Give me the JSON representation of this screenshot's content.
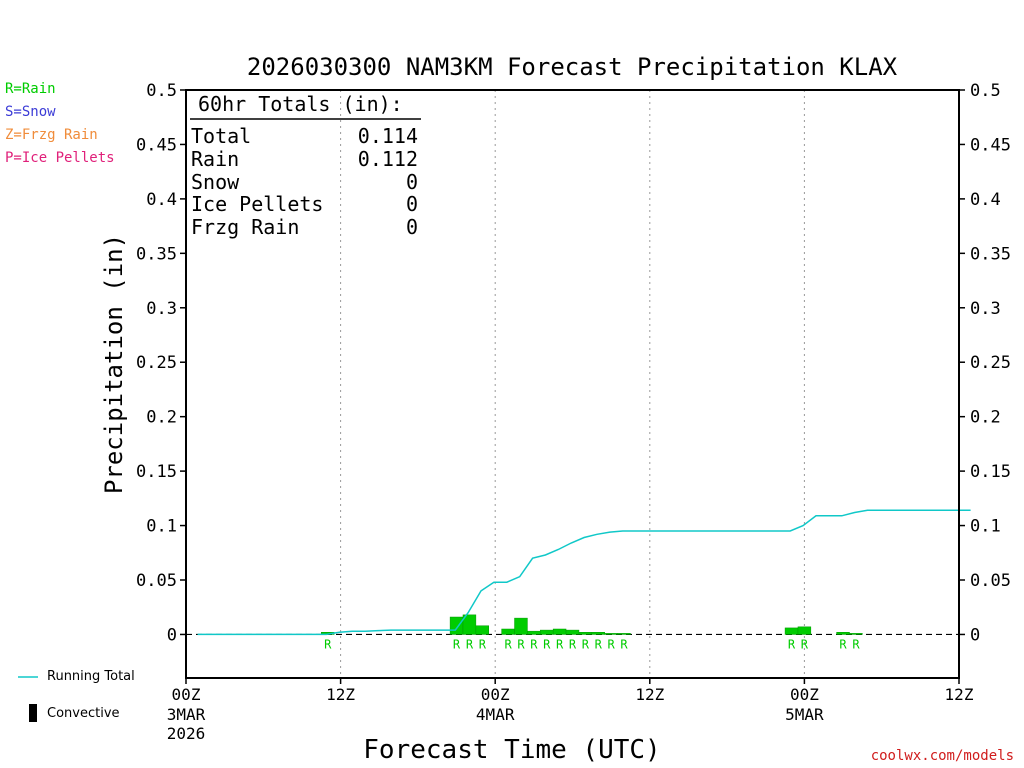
{
  "chart_data": {
    "type": "bar+line",
    "title": "2026030300 NAM3KM Forecast Precipitation KLAX",
    "xlabel": "Forecast Time (UTC)",
    "ylabel": "Precipitation (in)",
    "ylim": [
      -0.04,
      0.5
    ],
    "yticks": [
      "0",
      "0.05",
      "0.1",
      "0.15",
      "0.2",
      "0.25",
      "0.3",
      "0.35",
      "0.4",
      "0.45",
      "0.5"
    ],
    "ytick_values": [
      0,
      0.05,
      0.1,
      0.15,
      0.2,
      0.25,
      0.3,
      0.35,
      0.4,
      0.45,
      0.5
    ],
    "xlim_hours": [
      0,
      60
    ],
    "xticks": [
      {
        "hour": 0,
        "label": "00Z",
        "date": "3MAR",
        "year": "2026"
      },
      {
        "hour": 12,
        "label": "12Z",
        "date": "",
        "year": ""
      },
      {
        "hour": 24,
        "label": "00Z",
        "date": "4MAR",
        "year": ""
      },
      {
        "hour": 36,
        "label": "12Z",
        "date": "",
        "year": ""
      },
      {
        "hour": 48,
        "label": "00Z",
        "date": "5MAR",
        "year": ""
      },
      {
        "hour": 60,
        "label": "12Z",
        "date": "",
        "year": ""
      }
    ],
    "bars": {
      "name": "Hourly Precipitation",
      "color": "#00cc00",
      "hours": [
        11,
        21,
        22,
        23,
        25,
        26,
        27,
        28,
        29,
        30,
        31,
        32,
        33,
        34,
        47,
        48,
        51,
        52
      ],
      "values": [
        0.002,
        0.016,
        0.018,
        0.008,
        0.005,
        0.015,
        0.003,
        0.004,
        0.005,
        0.004,
        0.002,
        0.002,
        0.001,
        0.001,
        0.006,
        0.007,
        0.002,
        0.001
      ],
      "types": [
        "R",
        "R",
        "R",
        "R",
        "R",
        "R",
        "R",
        "R",
        "R",
        "R",
        "R",
        "R",
        "R",
        "R",
        "R",
        "R",
        "R",
        "R"
      ]
    },
    "running_total": {
      "name": "Running Total",
      "color": "#10c8c8",
      "hours": [
        1,
        2,
        3,
        4,
        5,
        6,
        7,
        8,
        9,
        10,
        11,
        12,
        13,
        14,
        15,
        16,
        17,
        18,
        19,
        20,
        21,
        22,
        23,
        24,
        25,
        26,
        27,
        28,
        29,
        30,
        31,
        32,
        33,
        34,
        35,
        36,
        37,
        38,
        39,
        40,
        41,
        42,
        43,
        44,
        45,
        46,
        47,
        48,
        49,
        50,
        51,
        52,
        53,
        54,
        55,
        56,
        57,
        58,
        59,
        60
      ],
      "values": [
        0,
        0,
        0,
        0,
        0,
        0,
        0,
        0,
        0,
        0,
        0.002,
        0.003,
        0.003,
        0.0035,
        0.004,
        0.004,
        0.004,
        0.004,
        0.004,
        0.004,
        0.02,
        0.04,
        0.048,
        0.048,
        0.053,
        0.07,
        0.073,
        0.078,
        0.084,
        0.089,
        0.092,
        0.094,
        0.095,
        0.095,
        0.095,
        0.095,
        0.095,
        0.095,
        0.095,
        0.095,
        0.095,
        0.095,
        0.095,
        0.095,
        0.095,
        0.095,
        0.1,
        0.109,
        0.109,
        0.109,
        0.112,
        0.114,
        0.114,
        0.114,
        0.114,
        0.114,
        0.114,
        0.114,
        0.114,
        0.114
      ]
    },
    "totals_box": {
      "header": "60hr Totals (in):",
      "rows": [
        {
          "label": "Total",
          "value": "0.114"
        },
        {
          "label": "Rain",
          "value": "0.112"
        },
        {
          "label": "Snow",
          "value": "0"
        },
        {
          "label": "Ice Pellets",
          "value": "0"
        },
        {
          "label": "Frzg Rain",
          "value": "0"
        }
      ]
    },
    "legend": [
      {
        "text": "R=Rain",
        "color": "#00cc00"
      },
      {
        "text": "S=Snow",
        "color": "#3b3bd6"
      },
      {
        "text": "Z=Frzg Rain",
        "color": "#f08c3a"
      },
      {
        "text": "P=Ice Pellets",
        "color": "#e0207a"
      }
    ],
    "bottom_legend": {
      "running_total_label": "Running Total",
      "convective_label": "Convective"
    }
  },
  "credit": "coolwx.com/models"
}
